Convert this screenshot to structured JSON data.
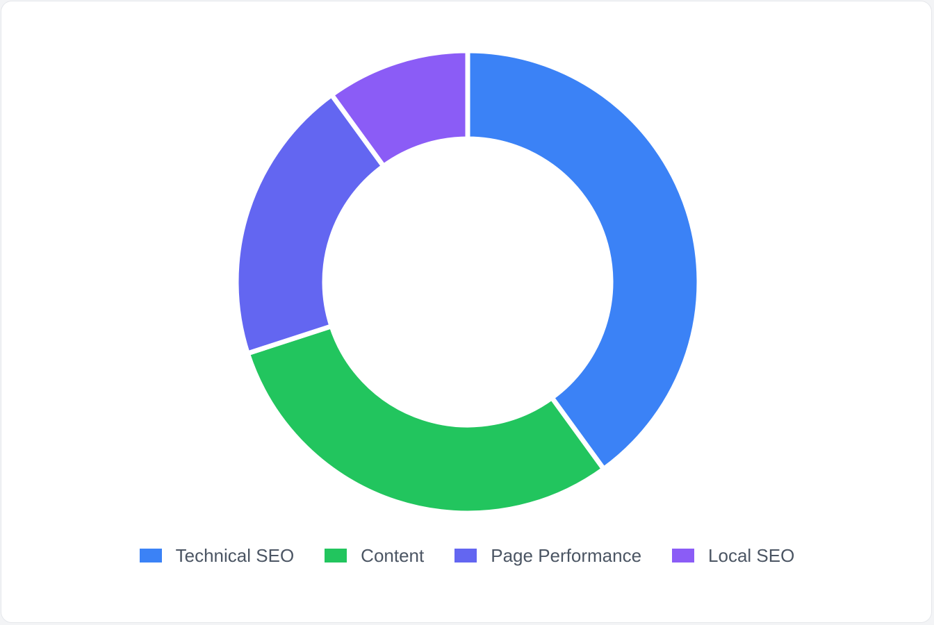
{
  "chart_data": {
    "type": "pie",
    "variant": "doughnut",
    "title": "",
    "categories": [
      "Technical SEO",
      "Content",
      "Page Performance",
      "Local SEO"
    ],
    "values": [
      40,
      30,
      20,
      10
    ],
    "colors": [
      "#3b82f6",
      "#22c55e",
      "#6366f1",
      "#8b5cf6"
    ],
    "legend_position": "bottom"
  }
}
